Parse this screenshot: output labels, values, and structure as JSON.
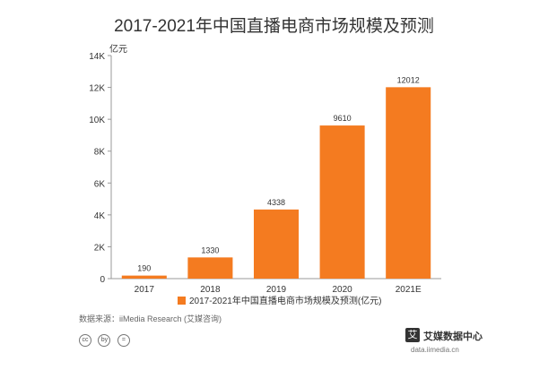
{
  "chart_data": {
    "type": "bar",
    "title": "2017-2021年中国直播电商市场规模及预测",
    "ylabel": "亿元",
    "categories": [
      "2017",
      "2018",
      "2019",
      "2020",
      "2021E"
    ],
    "series": [
      {
        "name": "2017-2021年中国直播电商市场规模及预测(亿元)",
        "values": [
          190,
          1330,
          4338,
          9610,
          12012
        ],
        "color": "#F47B20"
      }
    ],
    "ylim": [
      0,
      14000
    ],
    "yticks": [
      "0",
      "2K",
      "4K",
      "6K",
      "8K",
      "10K",
      "12K",
      "14K"
    ],
    "data_labels": [
      "190",
      "1330",
      "4338",
      "9610",
      "12012"
    ],
    "legend": "bottom",
    "grid": false
  },
  "footer": {
    "source": "数据来源：iiMedia Research (艾媒咨询)",
    "cc_icons": [
      "cc",
      "by",
      "="
    ],
    "brand_badge": "艾",
    "brand_name": "艾媒数据中心",
    "brand_url": "data.iimedia.cn"
  }
}
